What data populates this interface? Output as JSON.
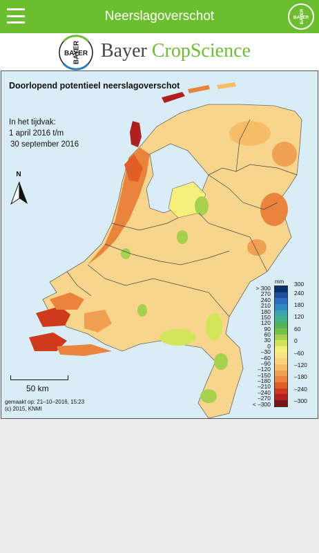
{
  "appbar": {
    "title": "Neerslagoverschot",
    "menu_icon": "hamburger-menu-icon",
    "logo_text_h": "BAYER",
    "logo_text_v": "BAYER",
    "color": "#6bbf2e"
  },
  "brand": {
    "cross_h": "BAYER",
    "cross_v": "BAYER",
    "name": "Bayer",
    "product": "CropScience"
  },
  "map": {
    "title": "Doorlopend potentieel neerslagoverschot",
    "period_label": "In het tijdvak:",
    "period_from": "1 april 2016 t/m",
    "period_to": "30 september 2016",
    "north_label": "N",
    "scale_label": "50 km",
    "credit_made": "gemaakt op: 21–10–2016, 15:23",
    "credit_copyright": "(c) 2015, KNMI",
    "water_color": "#d9edf7",
    "legend": {
      "unit": "mm",
      "left_ticks": [
        "> 300",
        "270",
        "240",
        "210",
        "180",
        "150",
        "120",
        "90",
        "60",
        "30",
        "0",
        "–30",
        "–60",
        "–90",
        "–120",
        "–150",
        "–180",
        "–210",
        "–240",
        "–270",
        "< –300"
      ],
      "right_ticks": [
        "300",
        "240",
        "180",
        "120",
        "60",
        "0",
        "–60",
        "–120",
        "–180",
        "–240",
        "–300"
      ],
      "colors": [
        "#08306b",
        "#1f4fa0",
        "#2b6cc4",
        "#2e8bc0",
        "#3aa6b0",
        "#3fb38a",
        "#52b45a",
        "#74c14a",
        "#a5d14c",
        "#d2e45a",
        "#f4f07a",
        "#fbe283",
        "#f9d47a",
        "#f6bd69",
        "#f0a052",
        "#ea843d",
        "#df5f27",
        "#cf3a1c",
        "#b21f1f",
        "#7a1414"
      ]
    }
  }
}
